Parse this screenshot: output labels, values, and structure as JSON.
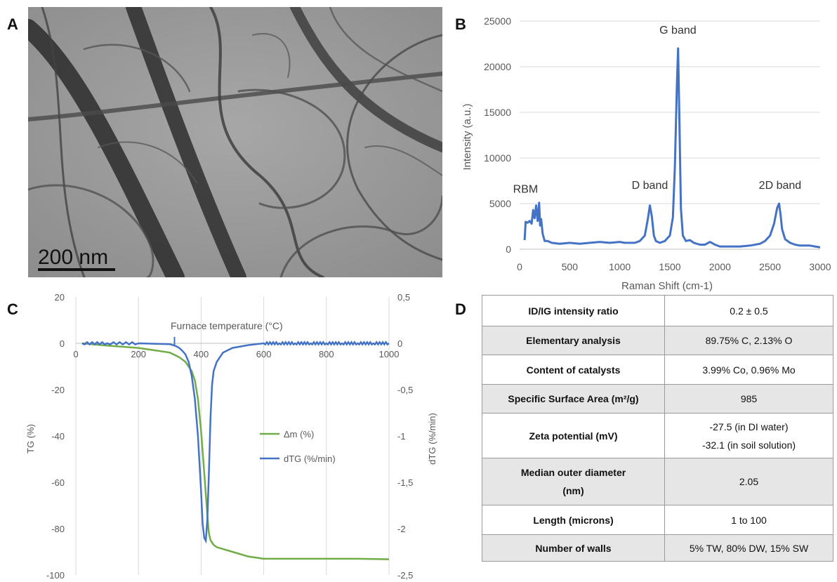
{
  "panels": {
    "a": "A",
    "b": "B",
    "c": "C",
    "d": "D"
  },
  "tem": {
    "scale_label": "200 nm"
  },
  "colors": {
    "raman_line": "#4472c4",
    "tg_line": "#70ad47",
    "dtg_line": "#4472c4",
    "grid": "#d9d9d9",
    "table_stripe": "#e6e6e6"
  },
  "chart_data": [
    {
      "type": "line",
      "xlabel": "Raman Shift (cm-1)",
      "ylabel": "Intensity (a.u.)",
      "xlim": [
        0,
        3000
      ],
      "ylim": [
        0,
        25000
      ],
      "x_ticks": [
        "0",
        "500",
        "1000",
        "1500",
        "2000",
        "2500",
        "3000"
      ],
      "y_ticks": [
        "0",
        "5000",
        "10000",
        "15000",
        "20000",
        "25000"
      ],
      "grid": "horizontal",
      "series": [
        {
          "x": [
            50,
            60,
            80,
            100,
            120,
            135,
            150,
            165,
            180,
            195,
            205,
            215,
            230,
            250,
            280,
            320,
            400,
            500,
            600,
            700,
            800,
            900,
            1000,
            1050,
            1100,
            1150,
            1200,
            1250,
            1280,
            1300,
            1320,
            1340,
            1360,
            1400,
            1450,
            1500,
            1530,
            1550,
            1570,
            1582,
            1595,
            1610,
            1630,
            1660,
            1700,
            1740,
            1800,
            1850,
            1900,
            1950,
            2000,
            2100,
            2200,
            2300,
            2400,
            2450,
            2500,
            2540,
            2570,
            2590,
            2605,
            2620,
            2650,
            2700,
            2750,
            2800,
            2900,
            2950,
            3000
          ],
          "y": [
            1000,
            3000,
            2900,
            3100,
            2800,
            4300,
            3400,
            4800,
            3100,
            5100,
            2600,
            3300,
            1700,
            900,
            900,
            700,
            600,
            700,
            600,
            700,
            800,
            700,
            800,
            700,
            700,
            700,
            900,
            1500,
            3300,
            4800,
            3600,
            1500,
            900,
            700,
            900,
            1500,
            3500,
            9000,
            18000,
            22000,
            14000,
            4500,
            1500,
            900,
            1000,
            700,
            500,
            500,
            800,
            500,
            300,
            300,
            300,
            400,
            600,
            900,
            1500,
            2800,
            4500,
            5000,
            3800,
            2200,
            1100,
            700,
            500,
            400,
            400,
            300,
            200
          ]
        }
      ],
      "annotations": [
        "RBM",
        "D band",
        "G band",
        "2D band"
      ]
    },
    {
      "type": "line",
      "xlabel": "Furnace temperature (°C)",
      "ylabel": "TG (%)",
      "y2label": "dTG (%/min)",
      "xlim": [
        0,
        1000
      ],
      "ylim": [
        -100,
        20
      ],
      "y2lim": [
        -2.5,
        0.5
      ],
      "x_ticks": [
        "0",
        "200",
        "400",
        "600",
        "800",
        "1000"
      ],
      "y_ticks": [
        "20",
        "0",
        "-20",
        "-40",
        "-60",
        "-80",
        "-100"
      ],
      "y2_ticks": [
        "0,5",
        "0",
        "-0,5",
        "-1",
        "-1,5",
        "-2",
        "-2,5"
      ],
      "grid": "vertical",
      "legend_position": "right-center",
      "series": [
        {
          "name": "Δm (%)",
          "axis": "left",
          "x": [
            20,
            100,
            200,
            250,
            300,
            330,
            350,
            370,
            380,
            390,
            400,
            410,
            420,
            425,
            430,
            440,
            450,
            500,
            550,
            600,
            650,
            700,
            800,
            900,
            1000
          ],
          "y": [
            0,
            -1,
            -2,
            -3,
            -4,
            -6,
            -8,
            -12,
            -16,
            -24,
            -38,
            -56,
            -74,
            -82,
            -85,
            -87,
            -88,
            -90,
            -92,
            -93,
            -93,
            -93,
            -93,
            -93,
            -93.2
          ]
        },
        {
          "name": "dTG (%/min)",
          "axis": "right",
          "x": [
            20,
            100,
            200,
            300,
            310,
            320,
            330,
            340,
            350,
            360,
            370,
            380,
            390,
            400,
            405,
            410,
            415,
            420,
            425,
            430,
            435,
            440,
            450,
            470,
            500,
            550,
            600,
            650,
            700,
            750,
            800,
            850,
            900,
            950,
            1000
          ],
          "y": [
            0,
            0,
            0,
            -0.01,
            -0.02,
            -0.03,
            -0.05,
            -0.08,
            -0.12,
            -0.2,
            -0.35,
            -0.6,
            -1.0,
            -1.6,
            -1.95,
            -2.1,
            -2.13,
            -1.9,
            -1.4,
            -0.8,
            -0.45,
            -0.3,
            -0.2,
            -0.1,
            -0.05,
            -0.02,
            0,
            0,
            0,
            0,
            0,
            0,
            0,
            0,
            0
          ]
        }
      ]
    }
  ],
  "table": {
    "rows": [
      {
        "key": "ID/IG intensity ratio",
        "value": [
          "0.2 ± 0.5"
        ]
      },
      {
        "key": "Elementary analysis",
        "value": [
          "89.75% C, 2.13% O"
        ]
      },
      {
        "key": "Content of catalysts",
        "value": [
          "3.99% Co, 0.96% Mo"
        ]
      },
      {
        "key": "Specific Surface Area (m²/g)",
        "value": [
          "985"
        ]
      },
      {
        "key": "Zeta potential (mV)",
        "value": [
          "-27.5 (in DI water)",
          "-32.1 (in soil solution)"
        ]
      },
      {
        "key": "Median outer diameter",
        "key2": "(nm)",
        "value": [
          "2.05"
        ]
      },
      {
        "key": "Length (microns)",
        "value": [
          "1 to 100"
        ]
      },
      {
        "key": "Number of walls",
        "value": [
          "5% TW, 80% DW, 15% SW"
        ]
      }
    ]
  }
}
